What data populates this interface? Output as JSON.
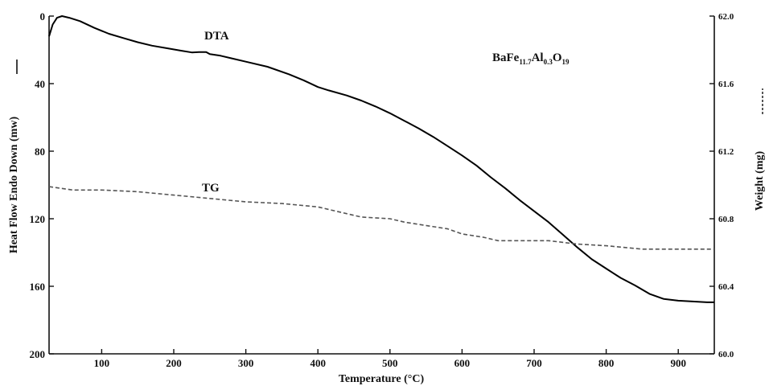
{
  "chart_data": {
    "type": "line",
    "xlabel": "Temperature (°C)",
    "ylabel_left": "Heat Flow Endo Down (mw)",
    "ylabel_right": "Weight (mg)",
    "xlim": [
      27,
      950
    ],
    "ylim_left": [
      0,
      200
    ],
    "ylim_right": [
      60.0,
      62.0
    ],
    "left_axis_inverted": true,
    "x_ticks": [
      100,
      200,
      300,
      400,
      500,
      600,
      700,
      800,
      900
    ],
    "y_ticks_left": [
      0,
      40,
      80,
      120,
      160,
      200
    ],
    "y_ticks_right": [
      "62.0",
      "61.6",
      "61.2",
      "60.8",
      "60.4",
      "60.0"
    ],
    "grid": false,
    "annotation": {
      "formula_parts": [
        {
          "text": "BaFe",
          "sub": false
        },
        {
          "text": "11.7",
          "sub": true
        },
        {
          "text": "Al",
          "sub": false
        },
        {
          "text": "0.3",
          "sub": true
        },
        {
          "text": "O",
          "sub": false
        },
        {
          "text": "19",
          "sub": true
        }
      ]
    },
    "series": [
      {
        "name": "DTA",
        "axis": "left",
        "style": "solid",
        "x": [
          27,
          32,
          38,
          45,
          55,
          70,
          90,
          110,
          130,
          150,
          170,
          190,
          210,
          225,
          235,
          245,
          250,
          265,
          280,
          300,
          330,
          360,
          380,
          400,
          415,
          440,
          460,
          480,
          500,
          520,
          540,
          560,
          580,
          600,
          620,
          640,
          660,
          680,
          700,
          720,
          740,
          760,
          780,
          800,
          820,
          840,
          860,
          880,
          900,
          920,
          940,
          950
        ],
        "y": [
          12,
          5,
          1,
          0,
          1,
          3,
          7,
          10.5,
          13,
          15.5,
          17.5,
          19,
          20.5,
          21.5,
          21.3,
          21.3,
          22.5,
          23.5,
          25,
          27,
          30,
          34.5,
          38,
          42,
          44,
          47,
          50,
          53.5,
          57.5,
          62,
          66.5,
          71.5,
          77,
          82.5,
          88.5,
          95.5,
          102,
          109,
          115.5,
          122,
          129.5,
          137,
          144,
          149.5,
          155,
          159.5,
          164.5,
          167.5,
          168.5,
          169,
          169.5,
          169.5
        ]
      },
      {
        "name": "TG",
        "axis": "right",
        "style": "dashed",
        "x": [
          27,
          60,
          100,
          150,
          200,
          250,
          300,
          350,
          400,
          440,
          460,
          500,
          520,
          550,
          580,
          600,
          630,
          650,
          680,
          720,
          760,
          800,
          850,
          900,
          950
        ],
        "y": [
          60.99,
          60.97,
          60.97,
          60.96,
          60.94,
          60.92,
          60.9,
          60.89,
          60.87,
          60.83,
          60.81,
          60.8,
          60.78,
          60.76,
          60.74,
          60.71,
          60.69,
          60.67,
          60.67,
          60.67,
          60.65,
          60.64,
          60.62,
          60.62,
          60.62
        ]
      }
    ]
  }
}
